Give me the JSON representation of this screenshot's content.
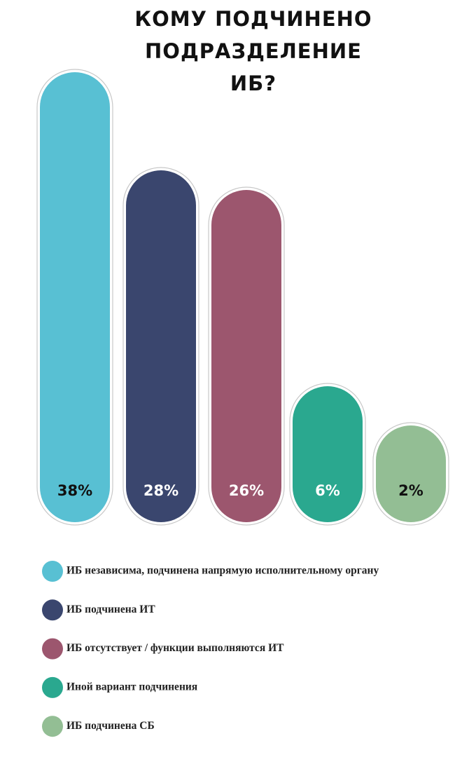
{
  "chart_data": {
    "type": "bar",
    "title": "КОМУ ПОДЧИНЕНО ПОДРАЗДЕЛЕНИЕ ИБ?",
    "categories": [
      "ИБ независима, подчинена напрямую исполнительному органу",
      "ИБ подчинена ИТ",
      "ИБ отсутствует / функции выполняются ИТ",
      "Иной вариант подчинения",
      "ИБ подчинена СБ"
    ],
    "values": [
      38,
      28,
      26,
      6,
      2
    ],
    "value_labels": [
      "38%",
      "28%",
      "26%",
      "6%",
      "2%"
    ],
    "colors": [
      "#58c0d3",
      "#3a466e",
      "#9c566e",
      "#2aa88f",
      "#93be94"
    ]
  }
}
